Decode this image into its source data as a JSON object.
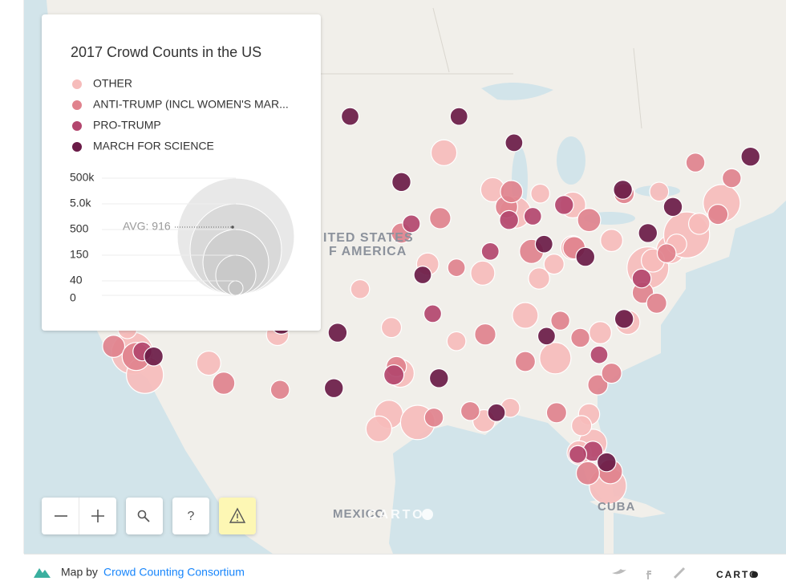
{
  "legend": {
    "title": "2017 Crowd Counts in the US",
    "items": [
      {
        "label": "OTHER",
        "color": "#f6bcbb",
        "markers": [
          [
            -122.3,
            47.6,
            20000
          ],
          [
            -118.2,
            34.0,
            40000
          ],
          [
            -117.2,
            32.7,
            30000
          ],
          [
            -121.9,
            37.3,
            15000
          ],
          [
            -112.1,
            33.4,
            10000
          ],
          [
            -104.9,
            39.7,
            20000
          ],
          [
            -97.7,
            30.3,
            15000
          ],
          [
            -95.4,
            29.8,
            25000
          ],
          [
            -90.1,
            29.9,
            8000
          ],
          [
            -84.4,
            33.7,
            20000
          ],
          [
            -80.2,
            25.8,
            30000
          ],
          [
            -81.4,
            28.5,
            15000
          ],
          [
            -82.5,
            27.9,
            10000
          ],
          [
            -86.8,
            36.2,
            12000
          ],
          [
            -87.6,
            41.9,
            20000
          ],
          [
            -83.0,
            40.0,
            10000
          ],
          [
            -77.0,
            38.9,
            40000
          ],
          [
            -75.2,
            39.9,
            15000
          ],
          [
            -73.9,
            40.7,
            50000
          ],
          [
            -71.1,
            42.4,
            30000
          ],
          [
            -93.3,
            45.0,
            12000
          ],
          [
            -90.2,
            38.6,
            10000
          ],
          [
            -94.6,
            39.1,
            8000
          ],
          [
            -96.8,
            32.8,
            15000
          ],
          [
            -97.5,
            35.5,
            6000
          ],
          [
            -106.6,
            35.1,
            8000
          ],
          [
            -111.9,
            40.8,
            8000
          ],
          [
            -116.2,
            43.6,
            5000
          ],
          [
            -80.8,
            35.2,
            8000
          ],
          [
            -78.6,
            35.8,
            10000
          ],
          [
            -85.7,
            38.3,
            7000
          ],
          [
            -84.5,
            39.1,
            6000
          ],
          [
            -100.0,
            37.7,
            5000
          ],
          [
            -98.5,
            29.4,
            12000
          ],
          [
            -92.3,
            34.7,
            5000
          ],
          [
            -89.4,
            43.1,
            10000
          ],
          [
            -83.0,
            42.3,
            12000
          ],
          [
            -79.9,
            40.4,
            8000
          ],
          [
            -76.6,
            39.3,
            9000
          ],
          [
            -72.9,
            41.3,
            7000
          ],
          [
            -76.1,
            43.0,
            5000
          ],
          [
            -74.7,
            40.2,
            6000
          ],
          [
            -88.0,
            30.7,
            5000
          ],
          [
            -81.7,
            30.3,
            7000
          ],
          [
            -82.3,
            29.6,
            6000
          ],
          [
            -109.0,
            45.0,
            3000
          ],
          [
            -118.6,
            35.4,
            5000
          ],
          [
            -85.6,
            42.9,
            5000
          ]
        ]
      },
      {
        "label": "ANTI-TRUMP (INCL WOMEN'S MAR...",
        "color": "#e0828d",
        "markers": [
          [
            -122.7,
            45.5,
            30000
          ],
          [
            -122.4,
            37.8,
            35000
          ],
          [
            -119.7,
            34.4,
            8000
          ],
          [
            -117.9,
            33.8,
            15000
          ],
          [
            -110.9,
            32.2,
            8000
          ],
          [
            -105.1,
            40.6,
            6000
          ],
          [
            -97.1,
            33.2,
            6000
          ],
          [
            -94.1,
            30.1,
            5000
          ],
          [
            -91.2,
            30.5,
            5000
          ],
          [
            -86.8,
            33.5,
            6000
          ],
          [
            -84.3,
            30.4,
            6000
          ],
          [
            -81.0,
            32.1,
            6000
          ],
          [
            -80.0,
            26.7,
            10000
          ],
          [
            -81.8,
            26.6,
            9000
          ],
          [
            -86.3,
            39.8,
            10000
          ],
          [
            -88.3,
            42.2,
            8000
          ],
          [
            -82.9,
            40.0,
            8000
          ],
          [
            -81.7,
            41.5,
            9000
          ],
          [
            -78.9,
            42.9,
            6000
          ],
          [
            -77.4,
            37.5,
            7000
          ],
          [
            -76.3,
            36.9,
            6000
          ],
          [
            -79.9,
            32.8,
            6000
          ],
          [
            -82.4,
            34.9,
            5000
          ],
          [
            -84.0,
            35.9,
            5000
          ],
          [
            -92.3,
            38.9,
            4000
          ],
          [
            -96.7,
            40.8,
            6000
          ],
          [
            -93.6,
            41.6,
            7000
          ],
          [
            -87.9,
            43.0,
            8000
          ],
          [
            -90.0,
            35.1,
            7000
          ],
          [
            -73.2,
            44.5,
            5000
          ],
          [
            -71.4,
            41.8,
            6000
          ],
          [
            -70.3,
            43.7,
            5000
          ],
          [
            -75.5,
            39.7,
            5000
          ],
          [
            -106.4,
            31.8,
            5000
          ],
          [
            -115.1,
            36.2,
            8000
          ]
        ]
      },
      {
        "label": "PRO-TRUMP",
        "color": "#b3466e",
        "markers": [
          [
            -117.4,
            34.1,
            5000
          ],
          [
            -97.3,
            32.7,
            6000
          ],
          [
            -88.1,
            41.5,
            5000
          ],
          [
            -86.2,
            41.7,
            4000
          ],
          [
            -83.7,
            42.3,
            5000
          ],
          [
            -77.5,
            38.3,
            5000
          ],
          [
            -81.4,
            28.0,
            6000
          ],
          [
            -94.2,
            36.3,
            4000
          ],
          [
            -80.9,
            33.9,
            4000
          ],
          [
            -104.8,
            38.8,
            4000
          ],
          [
            -89.6,
            39.8,
            4000
          ],
          [
            -95.9,
            41.3,
            4000
          ],
          [
            -82.6,
            27.8,
            4000
          ]
        ]
      },
      {
        "label": "MARCH FOR SCIENCE",
        "color": "#6a1b47",
        "markers": [
          [
            -123.0,
            44.9,
            6000
          ],
          [
            -121.5,
            38.6,
            8000
          ],
          [
            -119.8,
            36.7,
            6000
          ],
          [
            -116.5,
            33.8,
            5000
          ],
          [
            -96.7,
            43.5,
            5000
          ],
          [
            -100.8,
            46.8,
            4000
          ],
          [
            -87.7,
            45.5,
            4000
          ],
          [
            -106.3,
            35.7,
            6000
          ],
          [
            -101.8,
            35.2,
            5000
          ],
          [
            -102.1,
            31.9,
            5000
          ],
          [
            -93.7,
            32.5,
            5000
          ],
          [
            -89.1,
            30.4,
            4000
          ],
          [
            -75.0,
            42.2,
            5000
          ],
          [
            -79.0,
            43.1,
            5000
          ],
          [
            -77.0,
            40.8,
            5000
          ],
          [
            -80.3,
            27.3,
            5000
          ],
          [
            -82.0,
            39.5,
            5000
          ],
          [
            -85.1,
            35.0,
            4000
          ],
          [
            -104.6,
            44.1,
            3000
          ],
          [
            -92.1,
            46.8,
            4000
          ],
          [
            -68.8,
            44.8,
            5000
          ],
          [
            -78.9,
            36.0,
            5000
          ],
          [
            -85.3,
            40.2,
            4000
          ],
          [
            -95.0,
            38.5,
            4000
          ]
        ]
      }
    ],
    "size_levels": [
      {
        "value": 500000,
        "label": "500k"
      },
      {
        "value": 5000,
        "label": "5.0k"
      },
      500,
      150,
      40,
      0
    ],
    "average": {
      "value": 916,
      "label": "AVG: 916"
    }
  },
  "map_labels": {
    "country_line1": "ITED STATES",
    "country_line2": "F AMERICA",
    "mexico": "MEXICO",
    "cuba": "CUBA",
    "watermark": "CARTO"
  },
  "controls": {
    "help": "?"
  },
  "footer": {
    "prefix": "Map by",
    "link": "Crowd Counting Consortium",
    "logo": "CARTO"
  }
}
